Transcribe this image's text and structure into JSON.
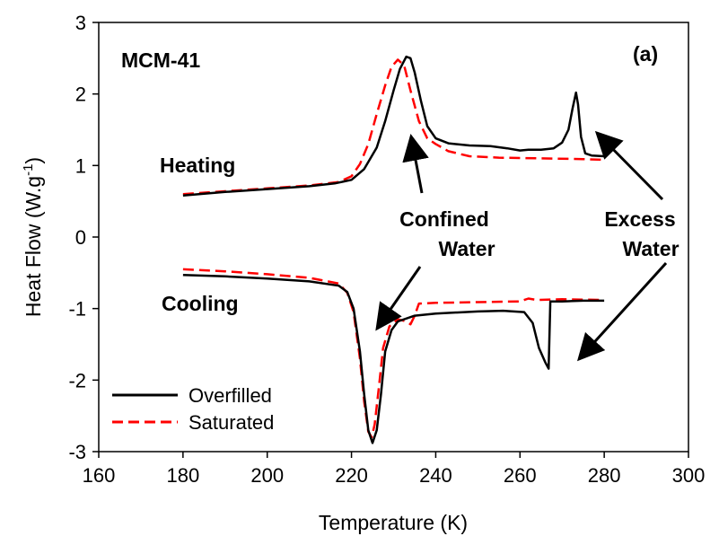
{
  "chart_data": {
    "type": "line",
    "xlabel": "Temperature (K)",
    "ylabel": {
      "main": "Heat Flow (W.g",
      "sup": "-1",
      "close": ")"
    },
    "xlim": [
      160,
      300
    ],
    "ylim": [
      -3,
      3
    ],
    "xticks": [
      160,
      180,
      200,
      220,
      240,
      260,
      280,
      300
    ],
    "yticks": [
      -3,
      -2,
      -1,
      0,
      1,
      2,
      3
    ],
    "grid": false,
    "legend_position": "bottom-left",
    "series": [
      {
        "name": "Overfilled",
        "color": "#000000",
        "style": "solid",
        "segments": [
          [
            [
              180,
              0.58
            ],
            [
              190,
              0.63
            ],
            [
              200,
              0.67
            ],
            [
              210,
              0.71
            ],
            [
              216,
              0.75
            ],
            [
              220,
              0.8
            ],
            [
              223,
              0.95
            ],
            [
              226,
              1.25
            ],
            [
              228,
              1.62
            ],
            [
              230,
              2.05
            ],
            [
              231.5,
              2.35
            ],
            [
              233,
              2.52
            ],
            [
              234,
              2.5
            ],
            [
              235,
              2.3
            ],
            [
              236.5,
              1.9
            ],
            [
              238,
              1.55
            ],
            [
              240,
              1.38
            ],
            [
              243,
              1.31
            ],
            [
              248,
              1.28
            ],
            [
              253,
              1.27
            ],
            [
              257,
              1.24
            ],
            [
              260,
              1.21
            ],
            [
              262,
              1.22
            ],
            [
              265,
              1.22
            ],
            [
              268,
              1.24
            ],
            [
              270,
              1.32
            ],
            [
              271.5,
              1.5
            ],
            [
              272.5,
              1.8
            ],
            [
              273.3,
              2.02
            ],
            [
              273.8,
              1.85
            ],
            [
              274.5,
              1.4
            ],
            [
              275.5,
              1.17
            ],
            [
              277,
              1.14
            ],
            [
              280,
              1.13
            ]
          ],
          [
            [
              180,
              -0.53
            ],
            [
              190,
              -0.55
            ],
            [
              200,
              -0.58
            ],
            [
              210,
              -0.62
            ],
            [
              217,
              -0.68
            ],
            [
              219,
              -0.77
            ],
            [
              220.5,
              -1.0
            ],
            [
              222,
              -1.6
            ],
            [
              223,
              -2.2
            ],
            [
              224,
              -2.7
            ],
            [
              225,
              -2.88
            ],
            [
              226,
              -2.7
            ],
            [
              227,
              -2.2
            ],
            [
              228,
              -1.6
            ],
            [
              229.5,
              -1.3
            ],
            [
              231,
              -1.18
            ],
            [
              235,
              -1.1
            ],
            [
              240,
              -1.07
            ],
            [
              250,
              -1.04
            ],
            [
              256,
              -1.03
            ],
            [
              261,
              -1.05
            ],
            [
              263,
              -1.2
            ],
            [
              264.5,
              -1.55
            ],
            [
              266,
              -1.75
            ],
            [
              266.8,
              -1.84
            ],
            [
              267.2,
              -0.9
            ],
            [
              270,
              -0.9
            ],
            [
              275,
              -0.89
            ],
            [
              280,
              -0.89
            ]
          ]
        ]
      },
      {
        "name": "Saturated",
        "color": "#ff0000",
        "style": "dashed",
        "segments": [
          [
            [
              180,
              0.6
            ],
            [
              190,
              0.64
            ],
            [
              200,
              0.68
            ],
            [
              210,
              0.72
            ],
            [
              217,
              0.77
            ],
            [
              220,
              0.85
            ],
            [
              222,
              1.02
            ],
            [
              224,
              1.3
            ],
            [
              226,
              1.72
            ],
            [
              228,
              2.12
            ],
            [
              229.5,
              2.38
            ],
            [
              231,
              2.48
            ],
            [
              232.5,
              2.4
            ],
            [
              234,
              2.05
            ],
            [
              236,
              1.62
            ],
            [
              238,
              1.38
            ],
            [
              240,
              1.3
            ],
            [
              243,
              1.2
            ],
            [
              248,
              1.13
            ],
            [
              255,
              1.11
            ],
            [
              265,
              1.1
            ],
            [
              275,
              1.09
            ],
            [
              280,
              1.08
            ]
          ],
          [
            [
              180,
              -0.45
            ],
            [
              190,
              -0.48
            ],
            [
              200,
              -0.52
            ],
            [
              210,
              -0.57
            ],
            [
              217,
              -0.65
            ],
            [
              219,
              -0.78
            ],
            [
              220.5,
              -1.05
            ],
            [
              222,
              -1.7
            ],
            [
              223,
              -2.3
            ],
            [
              224,
              -2.72
            ],
            [
              224.8,
              -2.8
            ],
            [
              225.5,
              -2.62
            ],
            [
              226.5,
              -2.1
            ],
            [
              227.5,
              -1.55
            ],
            [
              229,
              -1.25
            ],
            [
              231,
              -1.15
            ],
            [
              233,
              -1.18
            ],
            [
              234,
              -1.22
            ],
            [
              235,
              -1.1
            ],
            [
              236,
              -0.93
            ],
            [
              240,
              -0.92
            ],
            [
              250,
              -0.91
            ],
            [
              260,
              -0.9
            ],
            [
              262,
              -0.86
            ],
            [
              264,
              -0.88
            ],
            [
              270,
              -0.87
            ],
            [
              280,
              -0.88
            ]
          ]
        ]
      }
    ],
    "annotations": {
      "sample": "MCM-41",
      "panel": "(a)",
      "heating": "Heating",
      "cooling": "Cooling",
      "confined_line1": "Confined",
      "confined_line2": "Water",
      "excess_line1": "Excess",
      "excess_line2": "Water"
    }
  }
}
